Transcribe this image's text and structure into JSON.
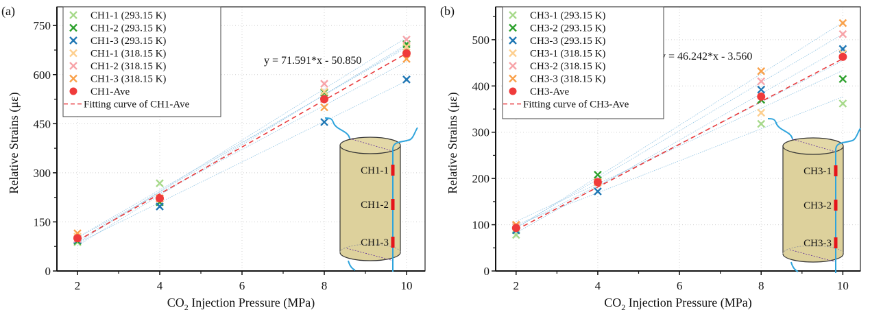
{
  "chart_data": [
    {
      "type": "scatter",
      "panel_label": "(a)",
      "title": "",
      "xlabel_prefix": "CO",
      "xlabel_sub": "2",
      "xlabel_suffix": " Injection Pressure (MPa)",
      "ylabel": "Relative Strains (με)",
      "xlim": [
        1.5,
        10.45
      ],
      "ylim": [
        0,
        807
      ],
      "xticks": [
        2,
        4,
        6,
        8,
        10
      ],
      "xticks_minor": [
        3,
        5,
        7,
        9
      ],
      "yticks": [
        0,
        150,
        300,
        450,
        600,
        750
      ],
      "yticks_minor": [
        75,
        225,
        375,
        525,
        675
      ],
      "grid": true,
      "legend_position": "top-left",
      "x": [
        2,
        4,
        8,
        10
      ],
      "series": [
        {
          "name": "CH1-1 (293.15 K)",
          "marker": "x",
          "color": "#a6d98a",
          "values": [
            88,
            268,
            535,
            680
          ]
        },
        {
          "name": "CH1-2 (293.15 K)",
          "marker": "x",
          "color": "#2ca02c",
          "values": [
            92,
            210,
            545,
            693
          ]
        },
        {
          "name": "CH1-3 (293.15 K)",
          "marker": "x",
          "color": "#1f77b4",
          "values": [
            95,
            197,
            455,
            585
          ]
        },
        {
          "name": "CH1-1 (318.15 K)",
          "marker": "x",
          "color": "#fdcf8f",
          "values": [
            105,
            222,
            548,
            685
          ]
        },
        {
          "name": "CH1-2 (318.15 K)",
          "marker": "x",
          "color": "#f7a3a8",
          "values": [
            98,
            222,
            572,
            707
          ]
        },
        {
          "name": "CH1-3 (318.15 K)",
          "marker": "x",
          "color": "#f9a14a",
          "values": [
            115,
            222,
            500,
            648
          ]
        },
        {
          "name": "CH1-Ave",
          "marker": "circle",
          "color": "#ef3b3b",
          "values": [
            100,
            222,
            525,
            665
          ]
        }
      ],
      "fit": {
        "name": "Fitting curve of CH1-Ave",
        "slope": 71.591,
        "intercept": -50.85,
        "color": "#e8393b",
        "equation": "y = 71.591*x - 50.850"
      },
      "inset": {
        "labels": [
          "CH1-1",
          "CH1-2",
          "CH1-3"
        ]
      }
    },
    {
      "type": "scatter",
      "panel_label": "(b)",
      "title": "",
      "xlabel_prefix": "CO",
      "xlabel_sub": "2",
      "xlabel_suffix": " Injection Pressure (MPa)",
      "ylabel": "Relative Strains (με)",
      "xlim": [
        1.5,
        10.43
      ],
      "ylim": [
        0,
        571
      ],
      "xticks": [
        2,
        4,
        6,
        8,
        10
      ],
      "xticks_minor": [
        3,
        5,
        7,
        9
      ],
      "yticks": [
        0,
        100,
        200,
        300,
        400,
        500
      ],
      "yticks_minor": [
        50,
        150,
        250,
        350,
        450,
        550
      ],
      "grid": true,
      "legend_position": "top-left",
      "x": [
        2,
        4,
        8,
        10
      ],
      "series": [
        {
          "name": "CH3-1 (293.15 K)",
          "marker": "x",
          "color": "#a6d98a",
          "values": [
            78,
            195,
            318,
            362
          ]
        },
        {
          "name": "CH3-2 (293.15 K)",
          "marker": "x",
          "color": "#2ca02c",
          "values": [
            88,
            208,
            370,
            415
          ]
        },
        {
          "name": "CH3-3 (293.15 K)",
          "marker": "x",
          "color": "#1f77b4",
          "values": [
            88,
            172,
            392,
            480
          ]
        },
        {
          "name": "CH3-1 (318.15 K)",
          "marker": "x",
          "color": "#fdcf8f",
          "values": [
            95,
            192,
            342,
            470
          ]
        },
        {
          "name": "CH3-2 (318.15 K)",
          "marker": "x",
          "color": "#f7a3a8",
          "values": [
            98,
            192,
            410,
            512
          ]
        },
        {
          "name": "CH3-3 (318.15 K)",
          "marker": "x",
          "color": "#f9a14a",
          "values": [
            100,
            192,
            432,
            536
          ]
        },
        {
          "name": "CH3-Ave",
          "marker": "circle",
          "color": "#ef3b3b",
          "values": [
            93,
            192,
            377,
            463
          ]
        }
      ],
      "fit": {
        "name": "Fitting curve of CH3-Ave",
        "slope": 46.242,
        "intercept": -3.56,
        "color": "#e8393b",
        "equation": "y = 46.242*x - 3.560"
      },
      "inset": {
        "labels": [
          "CH3-1",
          "CH3-2",
          "CH3-3"
        ]
      }
    }
  ]
}
